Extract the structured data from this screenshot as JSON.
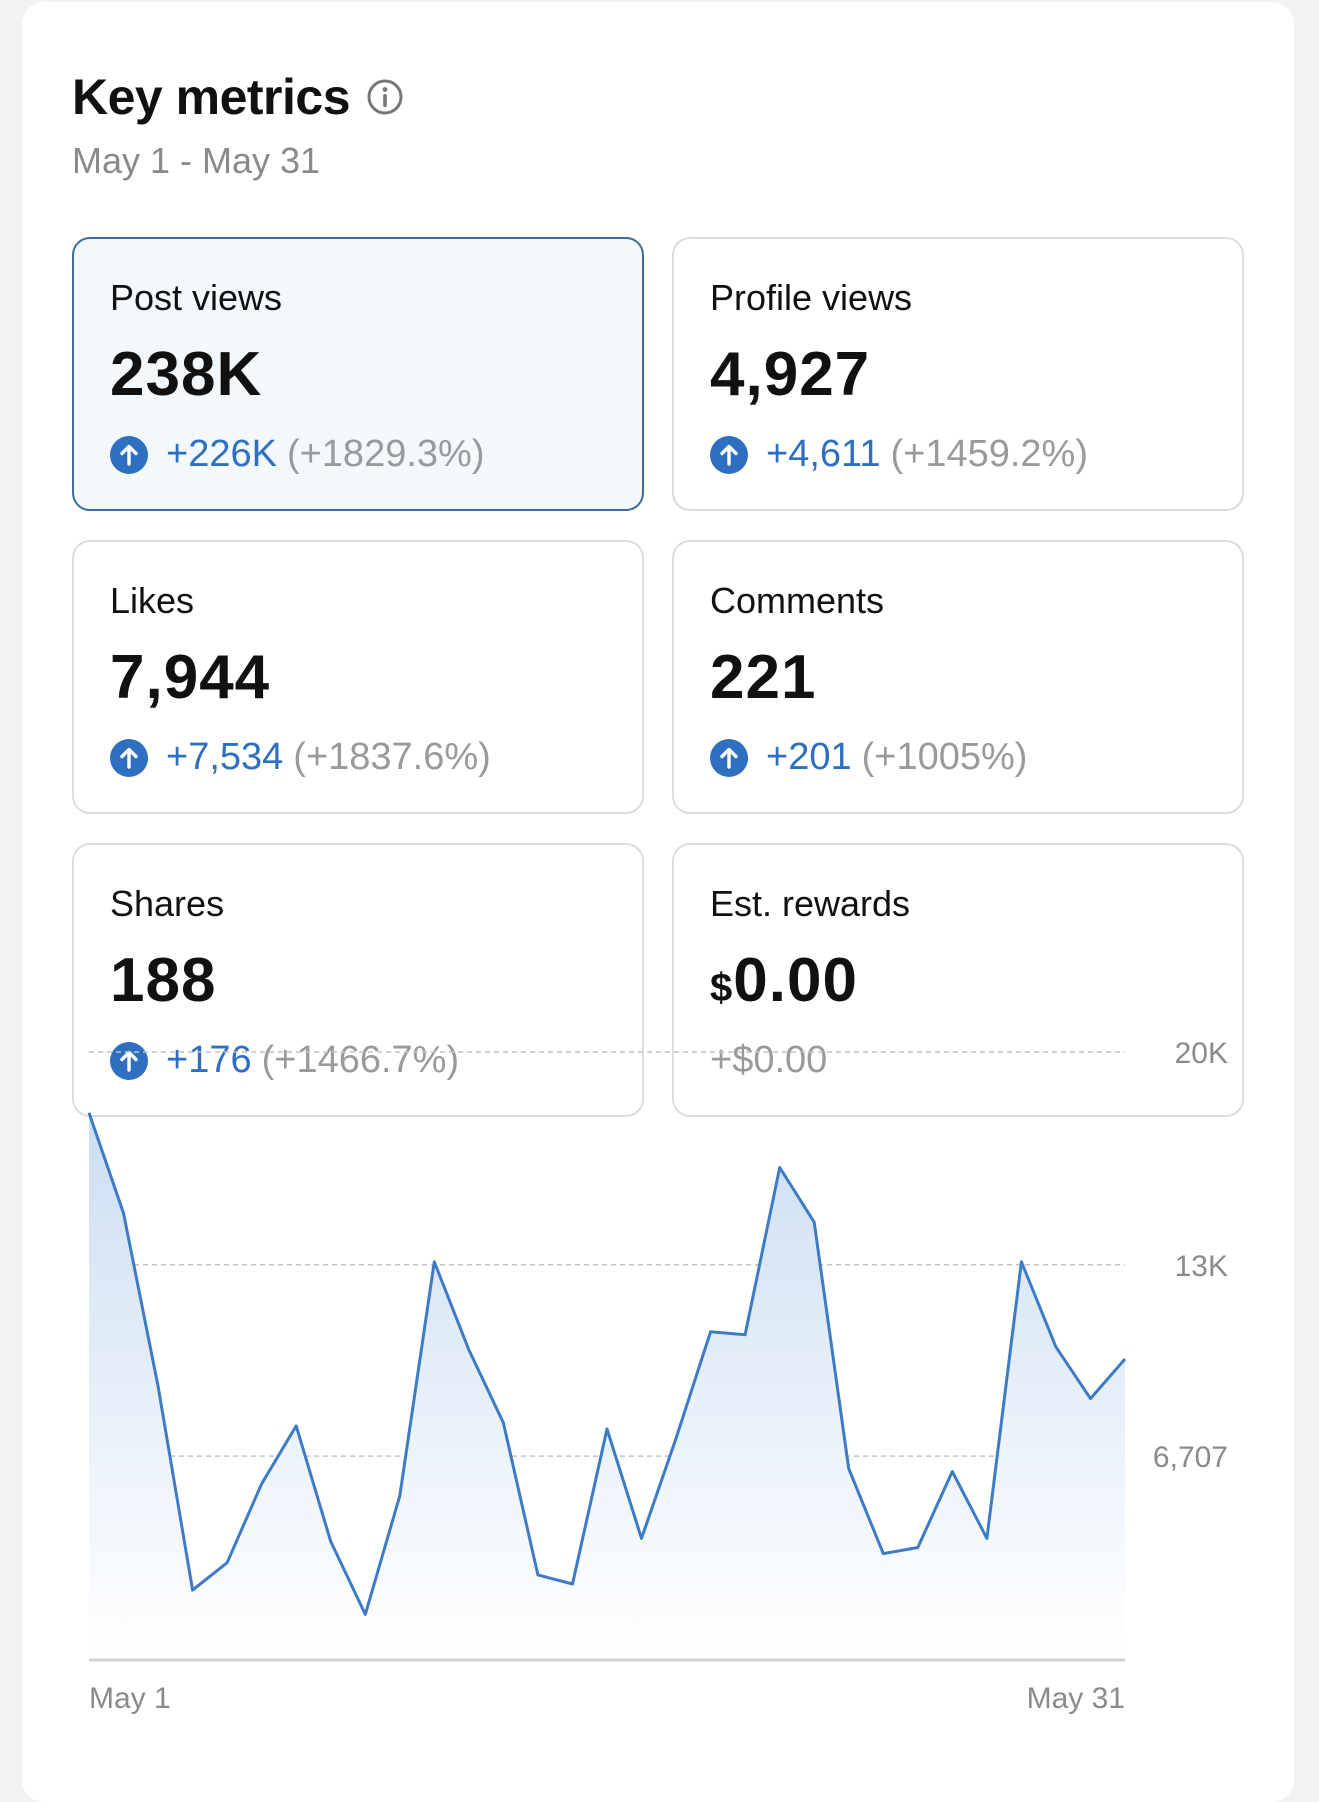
{
  "header": {
    "title": "Key metrics",
    "date_range": "May 1 - May 31",
    "info_icon": "info-circle-icon"
  },
  "metrics": [
    {
      "label": "Post views",
      "value": "238K",
      "delta": "+226K",
      "delta_pct": "(+1829.3%)",
      "selected": true
    },
    {
      "label": "Profile views",
      "value": "4,927",
      "delta": "+4,611",
      "delta_pct": "(+1459.2%)"
    },
    {
      "label": "Likes",
      "value": "7,944",
      "delta": "+7,534",
      "delta_pct": "(+1837.6%)"
    },
    {
      "label": "Comments",
      "value": "221",
      "delta": "+201",
      "delta_pct": "(+1005%)"
    },
    {
      "label": "Shares",
      "value": "188",
      "delta": "+176",
      "delta_pct": "(+1466.7%)"
    },
    {
      "label": "Est. rewards",
      "currency": "$",
      "value": "0.00",
      "delta": "+$0.00"
    }
  ],
  "colors": {
    "accent": "#2e6fc1",
    "line": "#3d7bc4",
    "selected_border": "#3d6e9a"
  },
  "chart_data": {
    "type": "area",
    "series": [
      {
        "values": [
          18000,
          14700,
          9000,
          2300,
          3200,
          5800,
          7700,
          3900,
          1500,
          5400,
          13100,
          10200,
          7800,
          2800,
          2500,
          7600,
          4000,
          7300,
          10800,
          10700,
          16200,
          14400,
          6300,
          3500,
          3700,
          6200,
          4000,
          13100,
          10300,
          8600,
          9900
        ]
      }
    ],
    "x_tick_labels": [
      "May 1",
      "May 31"
    ],
    "y_tick_labels": [
      "20K",
      "13K",
      "6,707"
    ],
    "y_ticks": [
      20000,
      13000,
      6707
    ],
    "ylim": [
      0,
      20000
    ],
    "grid": "dashed-horizontal"
  }
}
